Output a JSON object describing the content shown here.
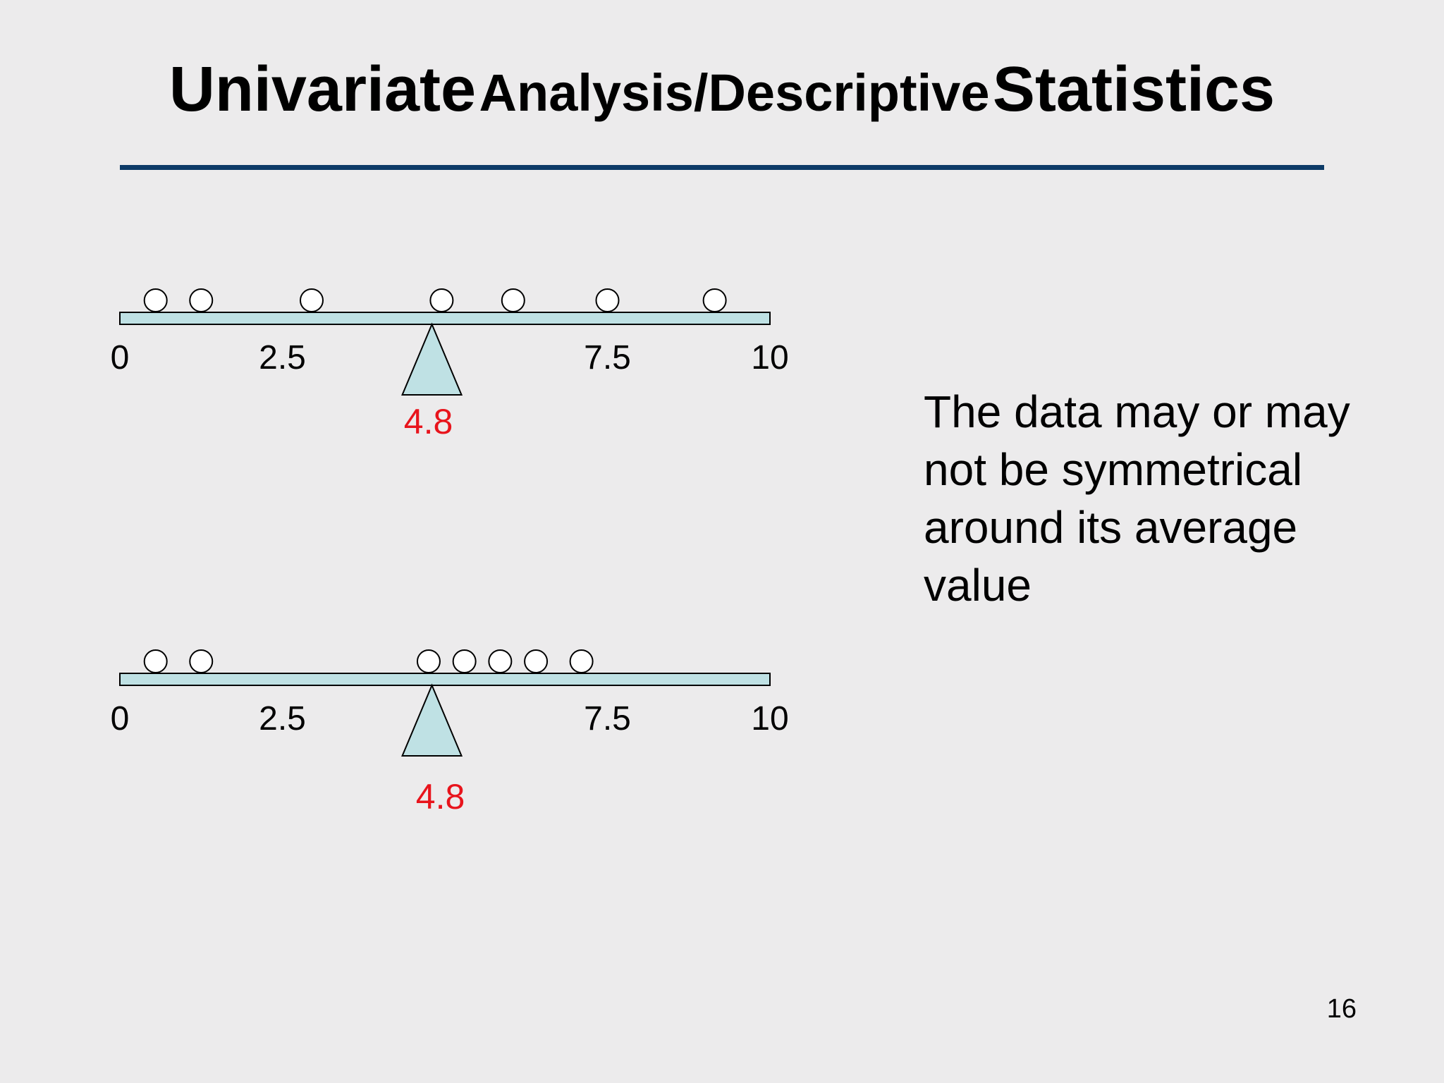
{
  "title": {
    "part1": "Univariate",
    "part2": "Analysis/Descriptive",
    "part3": "Statistics"
  },
  "note": "The data may or may not be symmetrical around its average value",
  "page_number": "16",
  "colors": {
    "title_rule": "#0d3a67",
    "beam_fill": "#bfe1e4",
    "fulcrum_fill": "#bfe1e4",
    "mean_label": "#e8141c",
    "background": "#ecebec"
  },
  "chart_data": [
    {
      "type": "scatter",
      "axis_range": [
        0,
        10
      ],
      "tick_labels": [
        "0",
        "2.5",
        "7.5",
        "10"
      ],
      "tick_values": [
        0,
        2.5,
        7.5,
        10
      ],
      "points": [
        0.55,
        1.25,
        2.95,
        4.95,
        6.05,
        7.5,
        9.15
      ],
      "fulcrum_value": 4.8,
      "fulcrum_label": "4.8"
    },
    {
      "type": "scatter",
      "axis_range": [
        0,
        10
      ],
      "tick_labels": [
        "0",
        "2.5",
        "7.5",
        "10"
      ],
      "tick_values": [
        0,
        2.5,
        7.5,
        10
      ],
      "points": [
        0.55,
        1.25,
        4.75,
        5.3,
        5.85,
        6.4,
        7.1
      ],
      "fulcrum_value": 4.8,
      "fulcrum_label": "4.8"
    }
  ]
}
